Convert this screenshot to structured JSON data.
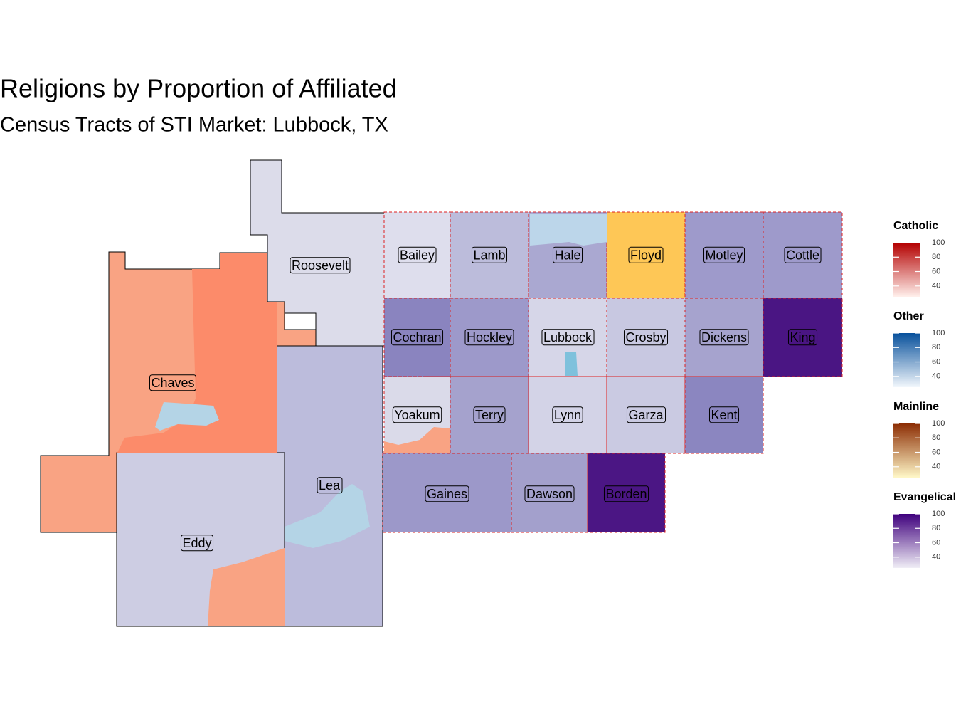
{
  "title": "Religions by Proportion of Affiliated",
  "subtitle": "Census Tracts of STI Market: Lubbock, TX",
  "counties": [
    "Roosevelt",
    "Chaves",
    "Lea",
    "Eddy",
    "Bailey",
    "Lamb",
    "Hale",
    "Floyd",
    "Motley",
    "Cottle",
    "Cochran",
    "Hockley",
    "Lubbock",
    "Crosby",
    "Dickens",
    "King",
    "Yoakum",
    "Terry",
    "Lynn",
    "Garza",
    "Kent",
    "Gaines",
    "Dawson",
    "Borden"
  ],
  "legends": [
    {
      "title": "Catholic",
      "lim": [
        25,
        100
      ],
      "ticks": [
        100,
        80,
        60,
        40
      ]
    },
    {
      "title": "Other",
      "lim": [
        25,
        100
      ],
      "ticks": [
        100,
        80,
        60,
        40
      ]
    },
    {
      "title": "Mainline",
      "lim": [
        25,
        100
      ],
      "ticks": [
        100,
        80,
        60,
        40
      ]
    },
    {
      "title": "Evangelical",
      "lim": [
        25,
        100
      ],
      "ticks": [
        100,
        80,
        60,
        40
      ]
    }
  ]
}
